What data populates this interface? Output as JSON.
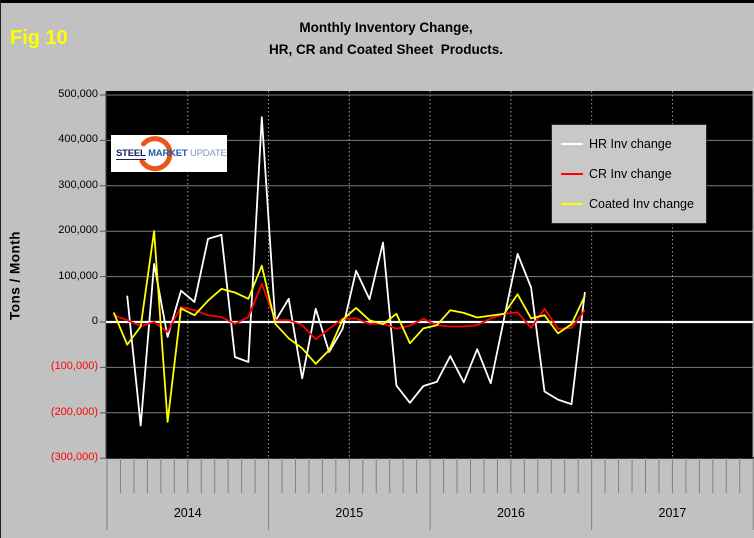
{
  "figure_label": "Fig 10",
  "title": {
    "line1": "Monthly Inventory Change,",
    "line2": "HR, CR and Coated Sheet  Products."
  },
  "y_axis": {
    "title": "Tons / Month",
    "ticks": [
      {
        "value": 500000,
        "label": "500,000",
        "color": "#000000"
      },
      {
        "value": 400000,
        "label": "400,000",
        "color": "#000000"
      },
      {
        "value": 300000,
        "label": "300,000",
        "color": "#000000"
      },
      {
        "value": 200000,
        "label": "200,000",
        "color": "#000000"
      },
      {
        "value": 100000,
        "label": "100,000",
        "color": "#000000"
      },
      {
        "value": 0,
        "label": "0",
        "color": "#000000"
      },
      {
        "value": -100000,
        "label": "(100,000)",
        "color": "#ff0000"
      },
      {
        "value": -200000,
        "label": "(200,000)",
        "color": "#ff0000"
      },
      {
        "value": -300000,
        "label": "(300,000)",
        "color": "#ff0000"
      }
    ]
  },
  "x_axis": {
    "years": [
      "2014",
      "2015",
      "2016",
      "2017"
    ]
  },
  "legend": [
    {
      "id": "hr",
      "label": "HR Inv change",
      "color": "#ffffff"
    },
    {
      "id": "cr",
      "label": "CR Inv change",
      "color": "#ff0000"
    },
    {
      "id": "coated",
      "label": "Coated Inv change",
      "color": "#ffff00"
    }
  ],
  "logo": {
    "part1": "STEEL",
    "part2": "MARKET",
    "part3": "UPDATE",
    "arc_color": "#e8561b"
  },
  "colors": {
    "background": "#c1c1c1",
    "plot_background": "#000000",
    "gridline": "#7d7d7d",
    "zero_line": "#ffffff",
    "tick": "#808080",
    "axis": "#000000",
    "negative_label": "#ff0000",
    "fig_label": "#ffff00"
  },
  "chart_data": {
    "type": "line",
    "title": "Monthly Inventory Change, HR, CR and Coated Sheet Products.",
    "ylabel": "Tons / Month",
    "ylim": [
      -300000,
      500000
    ],
    "y_tick_step": 100000,
    "plot_bg": "#000000",
    "legend_position": "upper right",
    "gridlines": {
      "horizontal": "solid gray",
      "vertical": "dotted gray every 6 months",
      "zero_line": "thick white"
    },
    "x": [
      "Jan-14",
      "Feb-14",
      "Mar-14",
      "Apr-14",
      "May-14",
      "Jun-14",
      "Jul-14",
      "Aug-14",
      "Sep-14",
      "Oct-14",
      "Nov-14",
      "Dec-14",
      "Jan-15",
      "Feb-15",
      "Mar-15",
      "Apr-15",
      "May-15",
      "Jun-15",
      "Jul-15",
      "Aug-15",
      "Sep-15",
      "Oct-15",
      "Nov-15",
      "Dec-15",
      "Jan-16",
      "Feb-16",
      "Mar-16",
      "Apr-16",
      "May-16",
      "Jun-16",
      "Jul-16",
      "Aug-16",
      "Sep-16",
      "Oct-16",
      "Nov-16",
      "Dec-16"
    ],
    "series": [
      {
        "id": "hr",
        "name": "HR Inv change",
        "color": "#ffffff",
        "values": [
          null,
          58000,
          -228000,
          128000,
          -33000,
          69000,
          44000,
          183000,
          192000,
          -77000,
          -88000,
          451000,
          2000,
          51000,
          -124000,
          29000,
          -66000,
          -15000,
          113000,
          50000,
          175000,
          -140000,
          -178000,
          -141000,
          -132000,
          -75000,
          -133000,
          -60000,
          -135000,
          8000,
          150000,
          76000,
          -153000,
          -171000,
          -181000,
          66000
        ]
      },
      {
        "id": "cr",
        "name": "CR Inv change",
        "color": "#ff0000",
        "values": [
          15000,
          4000,
          -9000,
          0,
          -22000,
          33000,
          26000,
          15000,
          11000,
          -4000,
          11000,
          84000,
          4000,
          4000,
          -7000,
          -38000,
          -15000,
          7000,
          8000,
          -4000,
          -3000,
          -15000,
          -8000,
          7000,
          -7000,
          -10000,
          -10000,
          -7000,
          8000,
          18000,
          21000,
          -13000,
          29000,
          -15000,
          -13000,
          26000
        ]
      },
      {
        "id": "coated",
        "name": "Coated Inv change",
        "color": "#ffff00",
        "values": [
          21000,
          -50000,
          -10000,
          200000,
          -220000,
          30000,
          15000,
          47000,
          73000,
          65000,
          51000,
          124000,
          -4000,
          -36000,
          -58000,
          -92000,
          -62000,
          5000,
          31000,
          4000,
          -5000,
          18000,
          -47000,
          -14000,
          -7000,
          26000,
          20000,
          10000,
          14000,
          18000,
          61000,
          8000,
          15000,
          -25000,
          -5000,
          58000
        ]
      }
    ]
  }
}
